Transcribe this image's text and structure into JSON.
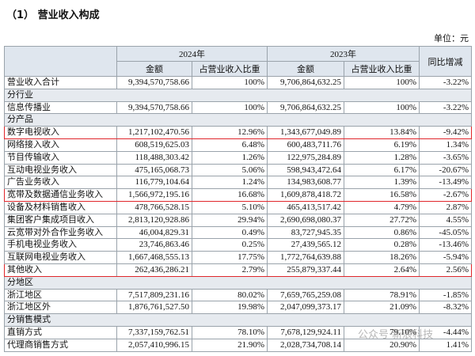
{
  "title": "（1） 营业收入构成",
  "unit": "单位：元",
  "table": {
    "header": {
      "years": [
        "2024年",
        "2023年"
      ],
      "change": "同比增减",
      "sub": [
        "金额",
        "占营业收入比重",
        "金额",
        "占营业收入比重"
      ]
    },
    "total": [
      "营业收入合计",
      "9,394,570,758.66",
      "100%",
      "9,706,864,632.25",
      "100%",
      "-3.22%"
    ],
    "sections": [
      {
        "name": "分行业",
        "rows": [
          [
            "信息传播业",
            "9,394,570,758.66",
            "100%",
            "9,706,864,632.25",
            "100%",
            "-3.22%"
          ]
        ]
      },
      {
        "name": "分产品",
        "rows": [
          [
            "数字电视收入",
            "1,217,102,470.56",
            "12.96%",
            "1,343,677,049.89",
            "13.84%",
            "-9.42%"
          ],
          [
            "网络接入收入",
            "608,519,625.03",
            "6.48%",
            "600,483,711.76",
            "6.19%",
            "1.34%"
          ],
          [
            "节目传输收入",
            "118,488,303.42",
            "1.26%",
            "122,975,284.89",
            "1.28%",
            "-3.65%"
          ],
          [
            "互动电视业务收入",
            "475,165,068.73",
            "5.06%",
            "598,943,472.64",
            "6.17%",
            "-20.67%"
          ],
          [
            "广告业务收入",
            "116,779,104.64",
            "1.24%",
            "134,983,608.77",
            "1.39%",
            "-13.49%"
          ],
          [
            "宽带及数据通信业务收入",
            "1,566,972,195.16",
            "16.68%",
            "1,609,878,418.72",
            "16.58%",
            "-2.67%"
          ],
          [
            "设备及材料销售收入",
            "478,766,528.15",
            "5.10%",
            "465,413,517.42",
            "4.79%",
            "2.87%"
          ],
          [
            "集团客户集成项目收入",
            "2,813,120,928.86",
            "29.94%",
            "2,690,698,080.37",
            "27.72%",
            "4.55%"
          ],
          [
            "云宽带对外合作业务收入",
            "46,004,829.31",
            "0.49%",
            "83,727,945.35",
            "0.86%",
            "-45.05%"
          ],
          [
            "手机电视业务收入",
            "23,746,863.46",
            "0.25%",
            "27,439,565.12",
            "0.28%",
            "-13.46%"
          ],
          [
            "互联网电视业务收入",
            "1,667,468,555.13",
            "17.75%",
            "1,772,764,639.88",
            "18.26%",
            "-5.94%"
          ],
          [
            "其他收入",
            "262,436,286.21",
            "2.79%",
            "255,879,337.44",
            "2.64%",
            "2.56%"
          ]
        ]
      },
      {
        "name": "分地区",
        "rows": [
          [
            "浙江地区",
            "7,517,809,231.16",
            "80.02%",
            "7,659,765,259.08",
            "78.91%",
            "-1.85%"
          ],
          [
            "浙江地区外",
            "1,876,761,527.50",
            "19.98%",
            "2,047,099,373.17",
            "21.09%",
            "-8.32%"
          ]
        ]
      },
      {
        "name": "分销售模式",
        "rows": [
          [
            "直销方式",
            "7,337,159,762.51",
            "78.10%",
            "7,678,129,924.11",
            "79.10%",
            "-4.44%"
          ],
          [
            "代理商销售方式",
            "2,057,410,996.15",
            "21.90%",
            "2,028,734,708.14",
            "20.90%",
            "1.41%"
          ]
        ]
      }
    ]
  },
  "watermark": "公众号·新浪科技"
}
